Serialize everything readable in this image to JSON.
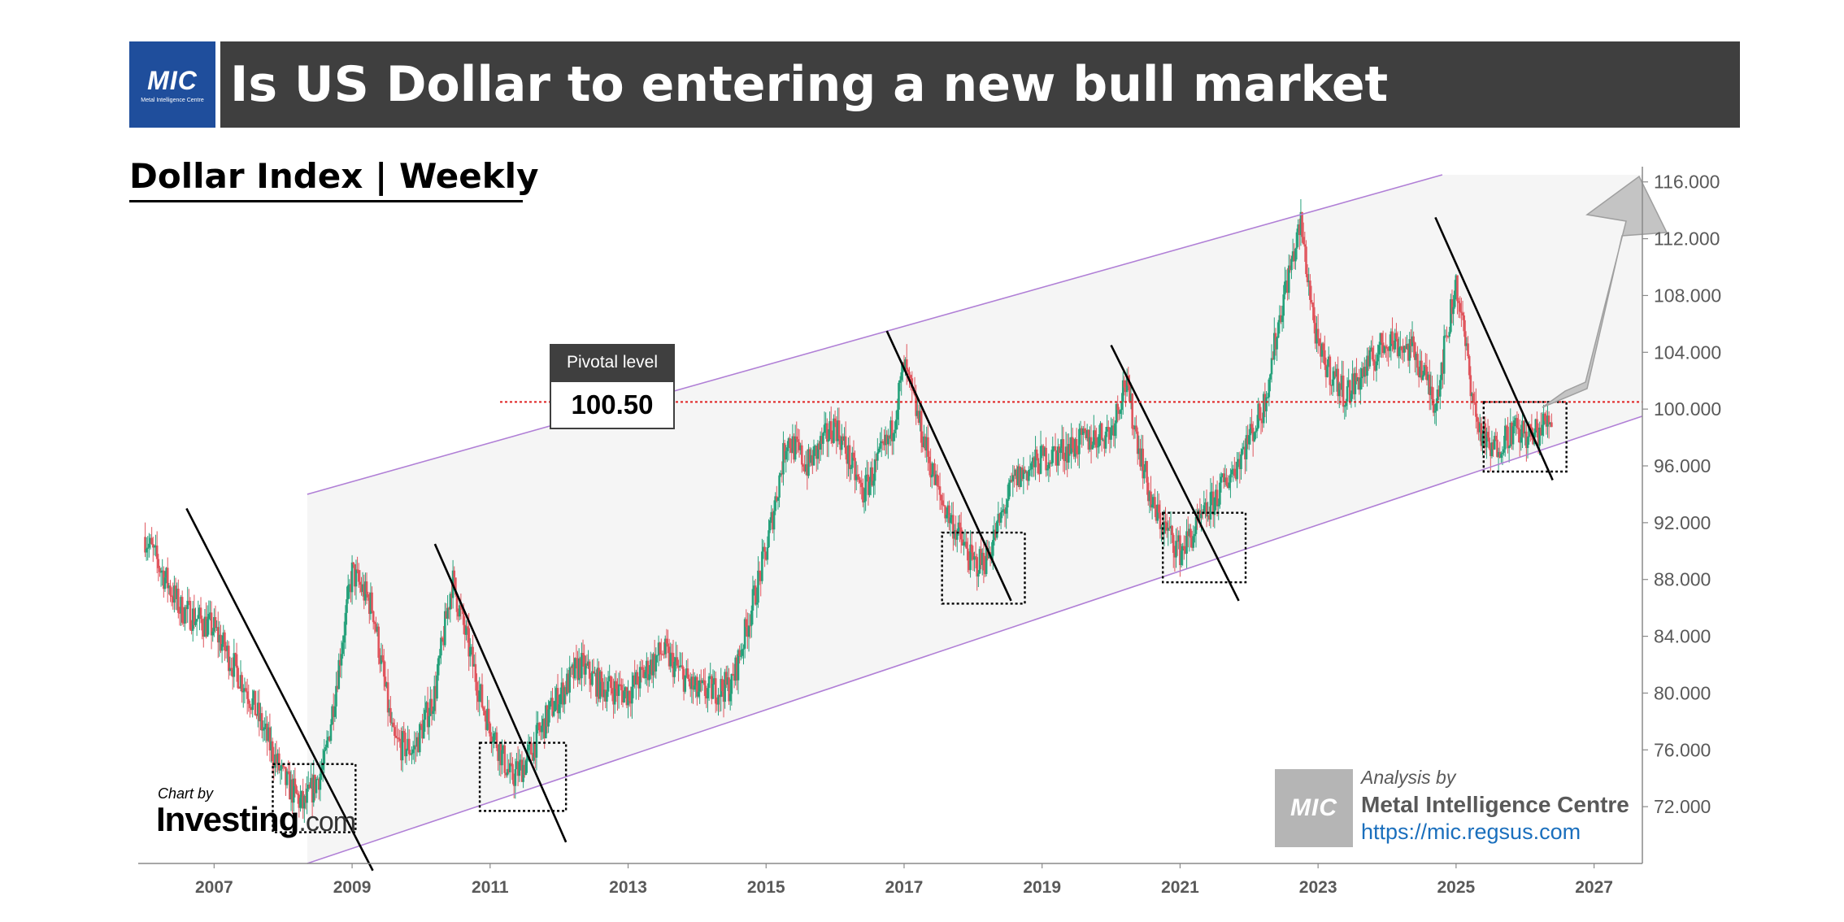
{
  "header": {
    "logo_text": "MIC",
    "logo_subtext": "Metal Intelligence Centre",
    "title": "Is US Dollar to entering a new bull market"
  },
  "subtitle": "Dollar Index | Weekly",
  "pivot": {
    "label": "Pivotal level",
    "value": "100.50"
  },
  "branding": {
    "chart_by": "Chart by",
    "investing_name": "Investing",
    "investing_suffix": ".com",
    "analysis_by": "Analysis by",
    "org": "Metal Intelligence Centre",
    "url": "https://mic.regsus.com",
    "badge_text": "MIC"
  },
  "colors": {
    "title_bar": "#3f3f3f",
    "logo_blue": "#1f4e9c",
    "bull_candle": "#26a17b",
    "bear_candle": "#e0555d",
    "channel_line": "#b07fd6",
    "pivot_line": "#e02020",
    "channel_fill": "#f5f5f5",
    "url_blue": "#1a6fbd"
  },
  "chart_data": {
    "type": "line",
    "subtype": "candlestick",
    "title": "Dollar Index | Weekly",
    "x_tick_labels": [
      "2007",
      "2009",
      "2011",
      "2013",
      "2015",
      "2017",
      "2019",
      "2021",
      "2023",
      "2025",
      "2027"
    ],
    "y_tick_labels": [
      "72.000",
      "76.000",
      "80.000",
      "84.000",
      "88.000",
      "92.000",
      "96.000",
      "100.000",
      "104.000",
      "108.000",
      "112.000",
      "116.000"
    ],
    "xlim": [
      2005.9,
      2027.7
    ],
    "ylim": [
      68.0,
      116.5
    ],
    "y_axis_side": "right",
    "grid": false,
    "series": [
      {
        "x": [
          2006.0,
          2006.5,
          2007.0,
          2007.5,
          2008.0,
          2008.3,
          2008.6,
          2009.0,
          2009.3,
          2009.6,
          2009.9,
          2010.2,
          2010.45,
          2010.9,
          2011.3,
          2011.5,
          2011.9,
          2012.3,
          2012.6,
          2013.0,
          2013.5,
          2014.0,
          2014.5,
          2015.0,
          2015.3,
          2015.6,
          2016.0,
          2016.4,
          2016.8,
          2017.0,
          2017.5,
          2018.0,
          2018.2,
          2018.6,
          2019.0,
          2019.5,
          2020.0,
          2020.2,
          2020.6,
          2021.0,
          2021.3,
          2021.8,
          2022.2,
          2022.5,
          2022.75,
          2023.0,
          2023.4,
          2023.8,
          2024.0,
          2024.4,
          2024.7,
          2025.0,
          2025.3,
          2025.5,
          2025.8,
          2026.1,
          2026.4
        ],
        "y": [
          91.0,
          86.0,
          84.5,
          80.0,
          74.0,
          72.0,
          75.0,
          88.5,
          86.0,
          76.5,
          76.0,
          80.0,
          88.0,
          79.0,
          74.0,
          75.0,
          79.0,
          82.0,
          80.5,
          80.0,
          83.0,
          80.0,
          80.5,
          90.0,
          98.0,
          96.0,
          99.0,
          94.0,
          98.0,
          103.0,
          94.0,
          89.0,
          89.5,
          95.0,
          96.5,
          97.5,
          98.5,
          102.0,
          93.0,
          90.0,
          92.0,
          96.0,
          100.0,
          108.0,
          113.0,
          104.0,
          101.0,
          103.5,
          105.0,
          104.0,
          100.5,
          109.0,
          99.0,
          97.0,
          98.5,
          98.0,
          99.5
        ]
      }
    ],
    "reference_lines": [
      {
        "label": "Pivotal level",
        "y": 100.5
      }
    ]
  }
}
